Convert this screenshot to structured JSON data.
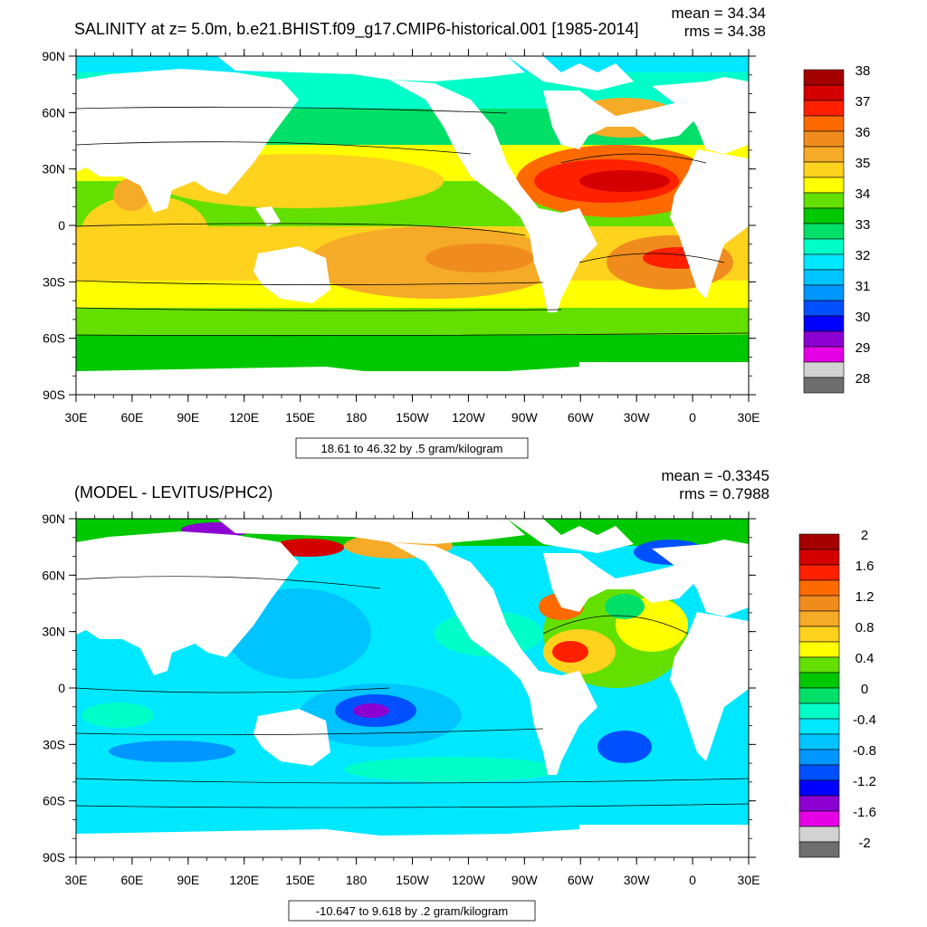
{
  "panels": [
    {
      "title": "SALINITY at z=   5.0m, b.e21.BHIST.f09_g17.CMIP6-historical.001 [1985-2014]",
      "stats_mean": "mean = 34.34",
      "stats_rms": "rms = 34.38",
      "contour_info": "18.61 to 46.32 by .5 gram/kilogram",
      "lat_ticks": [
        "90N",
        "60N",
        "30N",
        "0",
        "30S",
        "60S",
        "90S"
      ],
      "lon_ticks": [
        "30E",
        "60E",
        "90E",
        "120E",
        "150E",
        "180",
        "150W",
        "120W",
        "90W",
        "60W",
        "30W",
        "0",
        "30E"
      ],
      "legend_labels": [
        "38",
        "37",
        "36",
        "35",
        "34",
        "33",
        "32",
        "31",
        "30",
        "29",
        "28"
      ],
      "legend_colors": [
        "#a50000",
        "#d40000",
        "#ff2000",
        "#ff6a00",
        "#f08c1e",
        "#f5aa28",
        "#ffd21e",
        "#ffff00",
        "#64e000",
        "#00c800",
        "#00e068",
        "#00ffc8",
        "#00e8ff",
        "#00c4ff",
        "#0096ff",
        "#0050ff",
        "#0000ff",
        "#8c00d2",
        "#e600e6",
        "#d2d2d2",
        "#6e6e6e"
      ]
    },
    {
      "title": "(MODEL - LEVITUS/PHC2)",
      "stats_mean": "mean = -0.3345",
      "stats_rms": "rms = 0.7988",
      "contour_info": "-10.647 to 9.618 by .2 gram/kilogram",
      "lat_ticks": [
        "90N",
        "60N",
        "30N",
        "0",
        "30S",
        "60S",
        "90S"
      ],
      "lon_ticks": [
        "30E",
        "60E",
        "90E",
        "120E",
        "150E",
        "180",
        "150W",
        "120W",
        "90W",
        "60W",
        "30W",
        "0",
        "30E"
      ],
      "legend_labels": [
        "2",
        "1.6",
        "1.2",
        "0.8",
        "0.4",
        "0",
        "-0.4",
        "-0.8",
        "-1.2",
        "-1.6",
        "-2"
      ],
      "legend_colors": [
        "#a50000",
        "#d40000",
        "#ff2000",
        "#ff6a00",
        "#f08c1e",
        "#f5aa28",
        "#ffd21e",
        "#ffff00",
        "#64e000",
        "#00c800",
        "#00e068",
        "#00ffc8",
        "#00e8ff",
        "#00c4ff",
        "#0096ff",
        "#0050ff",
        "#0000ff",
        "#8c00d2",
        "#e600e6",
        "#d2d2d2",
        "#6e6e6e"
      ]
    }
  ]
}
